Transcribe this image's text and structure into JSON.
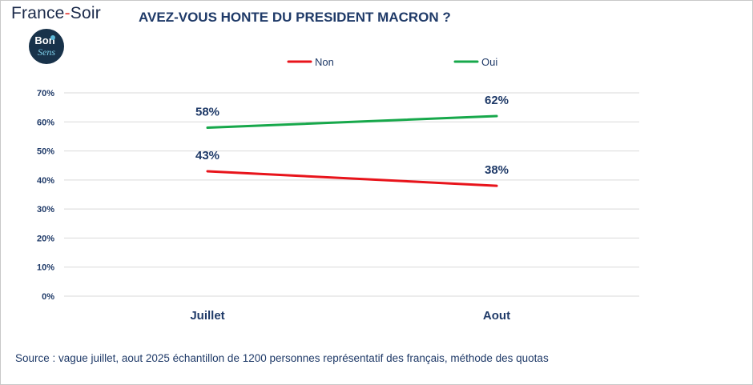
{
  "header": {
    "brand_prefix": "France",
    "brand_dash": "-",
    "brand_suffix": "Soir",
    "logo_line1": "Bon",
    "logo_line2": "Sens",
    "title": "AVEZ-VOUS HONTE DU PRESIDENT MACRON ?"
  },
  "chart_data": {
    "type": "line",
    "title": "AVEZ-VOUS HONTE DU PRESIDENT MACRON ?",
    "categories": [
      "Juillet",
      "Aout"
    ],
    "series": [
      {
        "name": "Non",
        "values": [
          43,
          38
        ],
        "labels": [
          "43%",
          "38%"
        ],
        "color": "#e8141b"
      },
      {
        "name": "Oui",
        "values": [
          58,
          62
        ],
        "labels": [
          "58%",
          "62%"
        ],
        "color": "#17a84b"
      }
    ],
    "ylim": [
      0,
      70
    ],
    "yticks": [
      0,
      10,
      20,
      30,
      40,
      50,
      60,
      70
    ],
    "ytick_labels": [
      "0%",
      "10%",
      "20%",
      "30%",
      "40%",
      "50%",
      "60%",
      "70%"
    ],
    "grid": true,
    "legend_position": "top"
  },
  "footer": {
    "source": "Source : vague juillet, aout  2025 échantillon de 1200 personnes représentatif des français, méthode des quotas"
  },
  "colors": {
    "text_primary": "#1f3a68",
    "grid": "#d9d9d9",
    "brand_accent": "#e53935",
    "logo_bg": "#18324a"
  }
}
